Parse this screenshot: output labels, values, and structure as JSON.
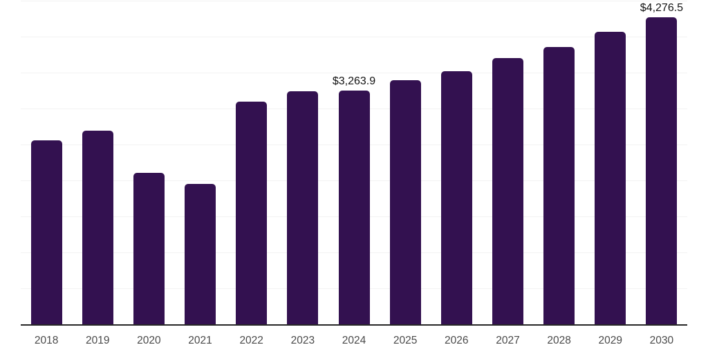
{
  "chart_data": {
    "type": "bar",
    "title": "",
    "xlabel": "",
    "ylabel": "",
    "categories": [
      "2018",
      "2019",
      "2020",
      "2021",
      "2022",
      "2023",
      "2024",
      "2025",
      "2026",
      "2027",
      "2028",
      "2029",
      "2030"
    ],
    "values": [
      2570,
      2700,
      2120,
      1960,
      3110,
      3250,
      3263.9,
      3400,
      3530,
      3710,
      3870,
      4080,
      4276.5
    ],
    "value_labels": [
      {
        "category": "2024",
        "text": "$3,263.9"
      },
      {
        "category": "2030",
        "text": "$4,276.5"
      }
    ],
    "ylim": [
      0,
      4500
    ],
    "gridline_step": 500,
    "grid": "horizontal-light",
    "legend": "none",
    "y_axis_labels_shown": false,
    "colors": {
      "bar": "#331150",
      "gridline": "#f2f2f2",
      "axis_line": "#262626",
      "tick_label": "#4a4a4a",
      "value_label": "#111111",
      "background": "#ffffff"
    }
  }
}
